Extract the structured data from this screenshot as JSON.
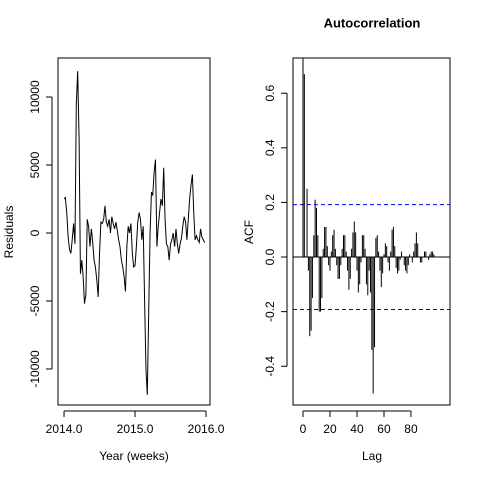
{
  "chart_data": [
    {
      "type": "line",
      "xlabel": "Year (weeks)",
      "ylabel": "Residuals",
      "color": "#000000",
      "x": [
        2014.0,
        2014.019,
        2014.038,
        2014.058,
        2014.077,
        2014.096,
        2014.115,
        2014.135,
        2014.154,
        2014.173,
        2014.192,
        2014.212,
        2014.231,
        2014.25,
        2014.269,
        2014.288,
        2014.308,
        2014.327,
        2014.346,
        2014.365,
        2014.385,
        2014.404,
        2014.423,
        2014.442,
        2014.462,
        2014.481,
        2014.5,
        2014.519,
        2014.538,
        2014.558,
        2014.577,
        2014.596,
        2014.615,
        2014.635,
        2014.654,
        2014.673,
        2014.692,
        2014.712,
        2014.731,
        2014.75,
        2014.769,
        2014.788,
        2014.808,
        2014.827,
        2014.846,
        2014.865,
        2014.885,
        2014.904,
        2014.923,
        2014.942,
        2014.962,
        2014.981,
        2015.0,
        2015.019,
        2015.038,
        2015.058,
        2015.077,
        2015.096,
        2015.115,
        2015.135,
        2015.154,
        2015.173,
        2015.192,
        2015.212,
        2015.231,
        2015.25,
        2015.269,
        2015.288,
        2015.308,
        2015.327,
        2015.346,
        2015.365,
        2015.385,
        2015.404,
        2015.423,
        2015.442,
        2015.462,
        2015.481,
        2015.5,
        2015.519,
        2015.538,
        2015.558,
        2015.577,
        2015.596,
        2015.615,
        2015.635,
        2015.654,
        2015.673,
        2015.692,
        2015.712,
        2015.731,
        2015.75,
        2015.769,
        2015.788,
        2015.808,
        2015.827,
        2015.846,
        2015.865,
        2015.885,
        2015.904,
        2015.923,
        2015.942,
        2015.962,
        2015.981
      ],
      "values": [
        2500,
        2600,
        1500,
        -300,
        -1200,
        -1500,
        -500,
        700,
        -800,
        9500,
        11900,
        7000,
        -3000,
        -2000,
        -3200,
        -5200,
        -4500,
        1000,
        500,
        -1000,
        300,
        -700,
        -2000,
        -2500,
        -3500,
        -4700,
        -1500,
        800,
        700,
        1000,
        2000,
        800,
        500,
        1000,
        0,
        1200,
        700,
        300,
        800,
        200,
        -500,
        -1000,
        -2000,
        -2500,
        -3200,
        -4300,
        -1000,
        500,
        0,
        700,
        -1500,
        -2500,
        -2400,
        -1000,
        800,
        1500,
        1000,
        -500,
        500,
        -5000,
        -10000,
        -11900,
        -6000,
        0,
        3000,
        2800,
        4500,
        5400,
        -1000,
        500,
        1500,
        2500,
        2000,
        4800,
        1000,
        -800,
        -1000,
        -2000,
        -800,
        -500,
        0,
        -1000,
        300,
        -800,
        -1500,
        -800,
        -400,
        500,
        1200,
        800,
        -500,
        1000,
        2500,
        3500,
        4300,
        1500,
        -500,
        -200,
        -500,
        -700,
        300,
        -300,
        -500,
        -700
      ],
      "xlim": [
        2013.915,
        2016.056
      ],
      "xticks": [
        {
          "value": 2014,
          "label": "2014.0"
        },
        {
          "value": 2015,
          "label": "2015.0"
        },
        {
          "value": 2016,
          "label": "2016.0"
        }
      ],
      "ylim": [
        -12650,
        12870
      ],
      "yticks": [
        -10000,
        -5000,
        0,
        5000,
        10000
      ]
    },
    {
      "type": "acf",
      "title": "Autocorrelation",
      "xlabel": "Lag",
      "ylabel": "ACF",
      "color": "#000000",
      "conf_color": "#0000ff",
      "x": [
        0,
        1,
        2,
        3,
        4,
        5,
        6,
        7,
        8,
        9,
        10,
        11,
        12,
        13,
        14,
        15,
        16,
        17,
        18,
        19,
        20,
        21,
        22,
        23,
        24,
        25,
        26,
        27,
        28,
        29,
        30,
        31,
        32,
        33,
        34,
        35,
        36,
        37,
        38,
        39,
        40,
        41,
        42,
        43,
        44,
        45,
        46,
        47,
        48,
        49,
        50,
        51,
        52,
        53,
        54,
        55,
        56,
        57,
        58,
        59,
        60,
        61,
        62,
        63,
        64,
        65,
        66,
        67,
        68,
        69,
        70,
        71,
        72,
        73,
        74,
        75,
        76,
        77,
        78,
        79,
        80,
        81,
        82,
        83,
        84,
        85,
        86,
        87,
        88,
        89,
        90,
        91,
        92,
        93,
        94,
        95,
        96,
        97
      ],
      "values": [
        1,
        0.67,
        0.0,
        0.25,
        -0.05,
        -0.29,
        -0.27,
        -0.15,
        0.08,
        0.21,
        0.18,
        0.08,
        -0.2,
        -0.2,
        -0.15,
        0.03,
        0.11,
        0.11,
        0.04,
        -0.03,
        -0.05,
        0.02,
        0.08,
        0.1,
        0.03,
        -0.03,
        -0.08,
        -0.08,
        -0.03,
        0.03,
        0.08,
        0.08,
        0.02,
        -0.05,
        -0.12,
        -0.08,
        0.03,
        0.09,
        0.13,
        0.09,
        -0.05,
        -0.13,
        -0.1,
        -0.02,
        0.08,
        0.08,
        0.03,
        -0.1,
        -0.14,
        -0.05,
        -0.13,
        -0.34,
        -0.5,
        -0.33,
        0.07,
        0.08,
        0.02,
        -0.05,
        -0.11,
        -0.06,
        0.01,
        0.05,
        0.04,
        -0.02,
        -0.05,
        0.02,
        0.1,
        0.11,
        0.04,
        -0.04,
        -0.06,
        -0.05,
        -0.01,
        0.02,
        0.0,
        -0.03,
        -0.05,
        -0.06,
        -0.03,
        0.01,
        0.0,
        -0.02,
        0.02,
        0.05,
        0.09,
        0.05,
        0.0,
        -0.02,
        -0.02,
        0.0,
        0.02,
        0.02,
        0.0,
        -0.01,
        0.01,
        0.02,
        0.02,
        0.01
      ],
      "conf_limits": [
        0.192,
        -0.192
      ],
      "xlim": [
        -7.4,
        108.9
      ],
      "xticks": [
        0,
        20,
        40,
        60,
        80
      ],
      "ylim": [
        -0.542,
        0.729
      ],
      "yticks": [
        -0.4,
        -0.2,
        {
          "value": 0,
          "label": "0.0"
        },
        0.2,
        0.4,
        0.6
      ]
    }
  ]
}
